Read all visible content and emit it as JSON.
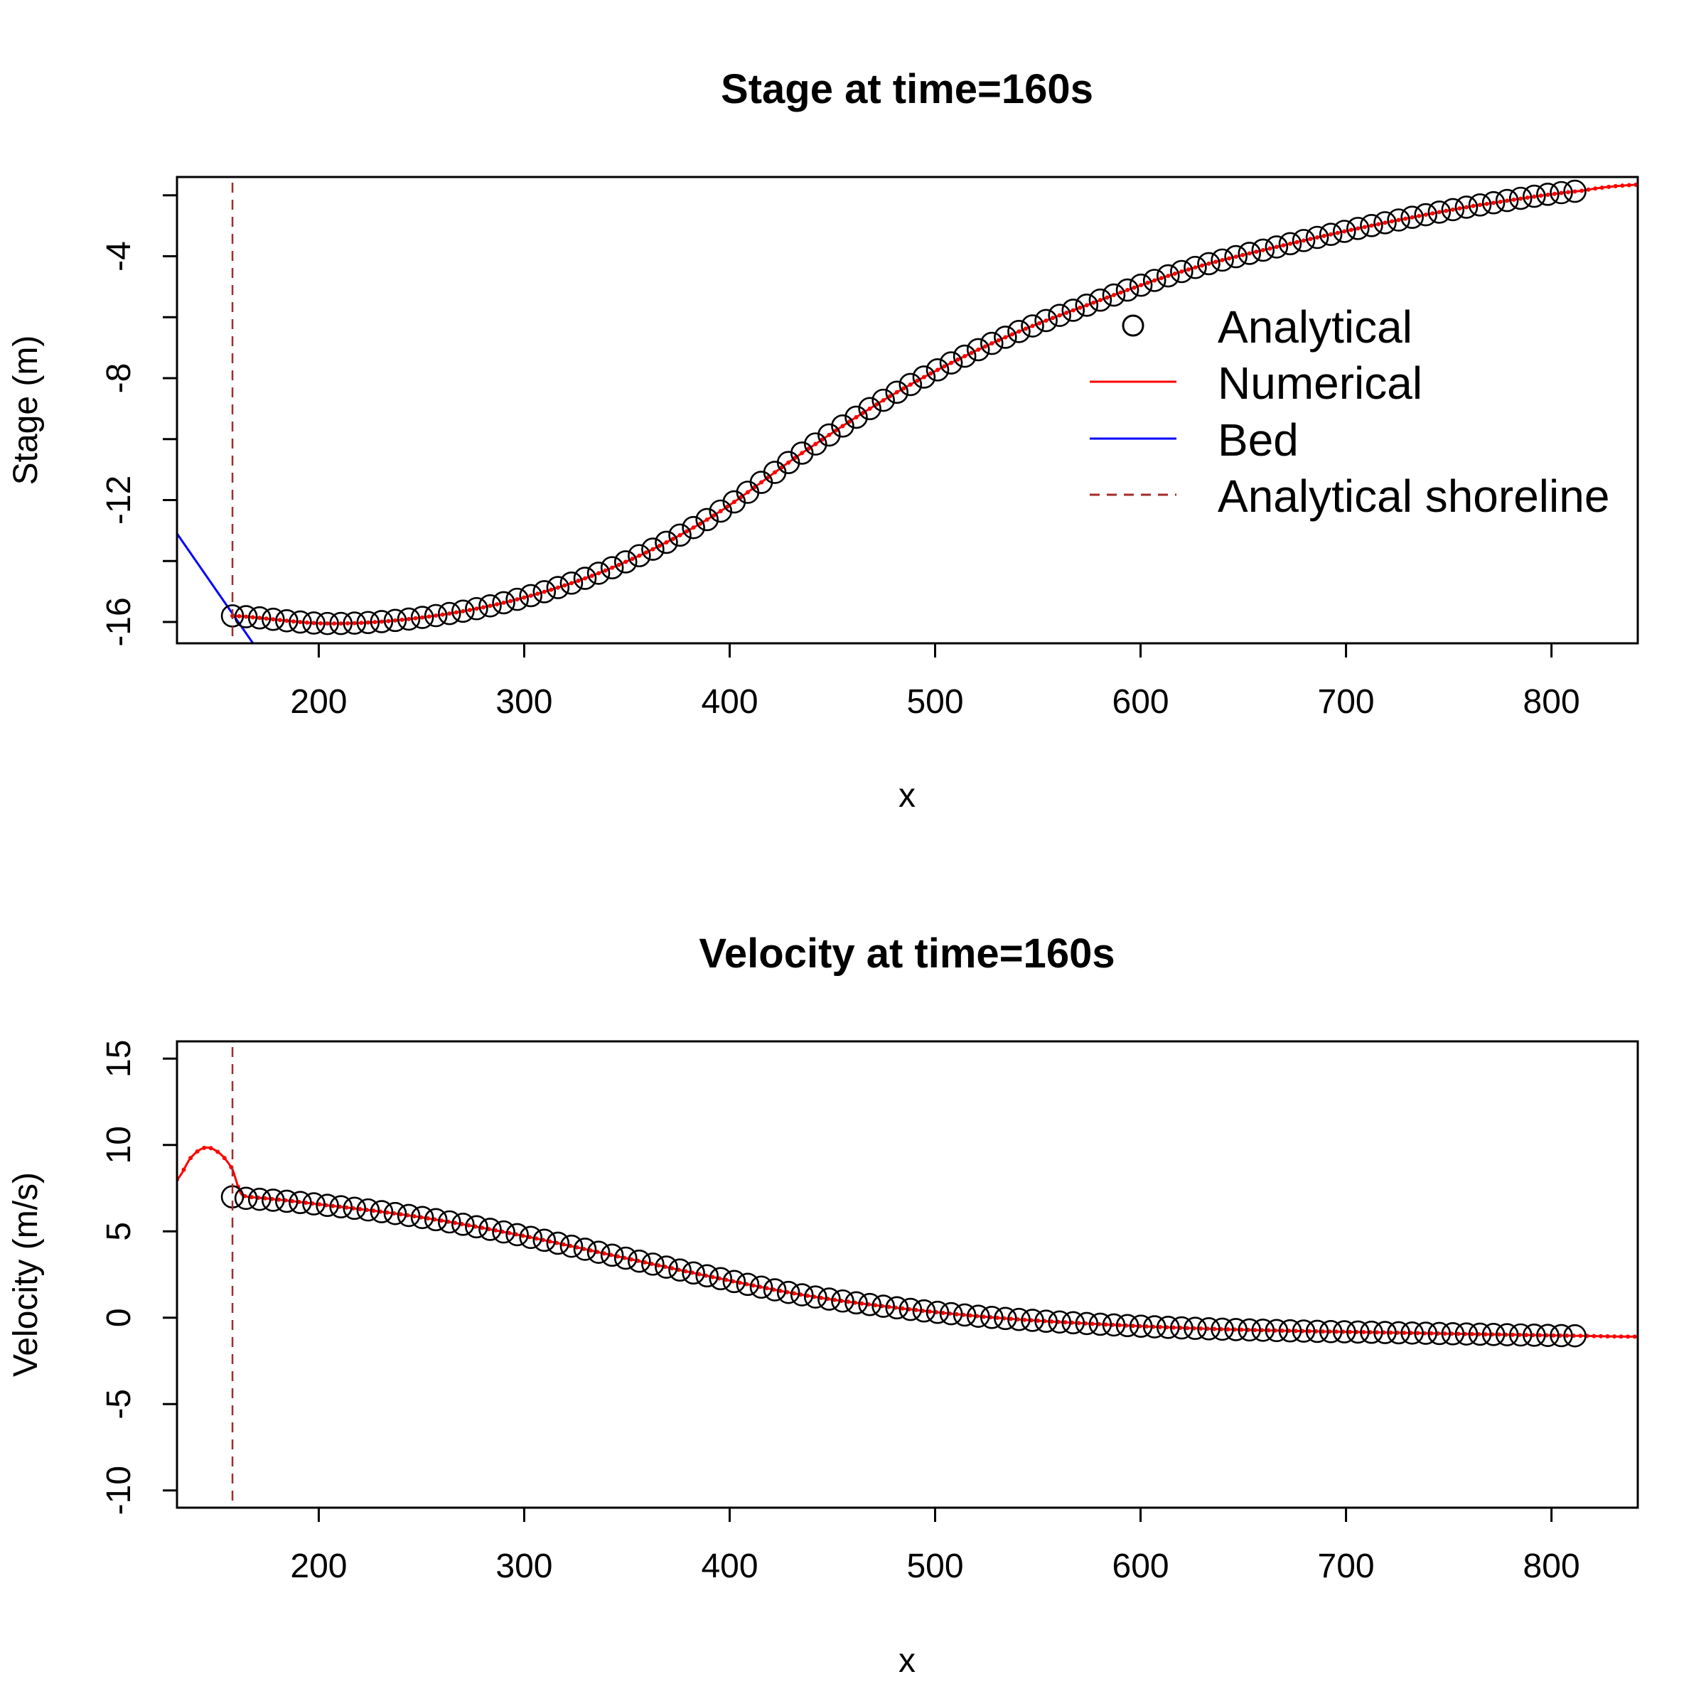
{
  "colors": {
    "analytical": "#000000",
    "numerical": "#ff0000",
    "bed": "#0000ff",
    "shoreline": "#a52a2a"
  },
  "legend": {
    "placement": "right",
    "entries": [
      {
        "label": "Analytical",
        "symbol": "open-circle"
      },
      {
        "label": "Numerical",
        "symbol": "solid-line"
      },
      {
        "label": "Bed",
        "symbol": "solid-line"
      },
      {
        "label": "Analytical shoreline",
        "symbol": "dashed-line"
      }
    ]
  },
  "chart_data": [
    {
      "type": "line",
      "title": "Stage at time=160s",
      "xlabel": "x",
      "ylabel": "Stage (m)",
      "xlim": [
        131,
        842
      ],
      "ylim": [
        -16.7,
        -1.4
      ],
      "xticks": [
        200,
        300,
        400,
        500,
        600,
        700,
        800
      ],
      "yticks": [
        -16,
        -14,
        -12,
        -10,
        -8,
        -6,
        -4,
        -2
      ],
      "ytick_labels": [
        "-16",
        "",
        "-12",
        "",
        "-8",
        "",
        "-4",
        ""
      ],
      "shoreline_x": 158,
      "analytical": {
        "x_start": 158,
        "x_step": 6.6,
        "count": 100,
        "x": [
          158,
          204.5,
          250.5,
          297,
          343.5,
          390,
          436.5,
          483,
          529.5,
          576,
          622.5,
          669,
          715.5,
          762,
          815
        ],
        "y": [
          -15.8,
          -16.05,
          -15.85,
          -15.25,
          -14.2,
          -12.6,
          -10.4,
          -8.4,
          -6.8,
          -5.55,
          -4.45,
          -3.65,
          -2.95,
          -2.35,
          -1.85
        ]
      },
      "numerical": {
        "x": [
          158,
          204.5,
          250.5,
          297,
          343.5,
          390,
          436.5,
          483,
          529.5,
          576,
          622.5,
          669,
          715.5,
          762,
          815,
          842
        ],
        "y": [
          -15.8,
          -16.05,
          -15.85,
          -15.25,
          -14.2,
          -12.6,
          -10.4,
          -8.4,
          -6.8,
          -5.55,
          -4.45,
          -3.65,
          -2.95,
          -2.35,
          -1.85,
          -1.65
        ]
      },
      "bed": {
        "x": [
          131,
          168
        ],
        "y": [
          -13.1,
          -16.7
        ]
      }
    },
    {
      "type": "line",
      "title": "Velocity at time=160s",
      "xlabel": "x",
      "ylabel": "Velocity (m/s)",
      "xlim": [
        131,
        842
      ],
      "ylim": [
        -11,
        16
      ],
      "xticks": [
        200,
        300,
        400,
        500,
        600,
        700,
        800
      ],
      "yticks": [
        -10,
        -5,
        0,
        5,
        10,
        15
      ],
      "ytick_labels": [
        "-10",
        "-5",
        "0",
        "5",
        "10",
        "15"
      ],
      "shoreline_x": 158,
      "analytical": {
        "x_start": 158,
        "x_step": 6.6,
        "count": 100,
        "x": [
          158,
          165,
          204.5,
          250.5,
          297,
          343.5,
          390,
          436.5,
          483,
          529.5,
          576,
          622.5,
          669,
          715.5,
          762,
          815
        ],
        "y": [
          7.0,
          6.9,
          6.5,
          5.8,
          4.8,
          3.6,
          2.4,
          1.3,
          0.55,
          0.0,
          -0.35,
          -0.6,
          -0.75,
          -0.85,
          -0.95,
          -1.05
        ]
      },
      "numerical": {
        "x": [
          131,
          138,
          145,
          152,
          158,
          162,
          165,
          204.5,
          250.5,
          297,
          343.5,
          390,
          436.5,
          483,
          529.5,
          576,
          622.5,
          669,
          715.5,
          762,
          815,
          842
        ],
        "y": [
          8.0,
          9.3,
          9.85,
          9.5,
          8.6,
          7.2,
          7.0,
          6.5,
          5.8,
          4.8,
          3.6,
          2.4,
          1.3,
          0.55,
          0.0,
          -0.35,
          -0.6,
          -0.75,
          -0.85,
          -0.95,
          -1.05,
          -1.1
        ]
      }
    }
  ]
}
